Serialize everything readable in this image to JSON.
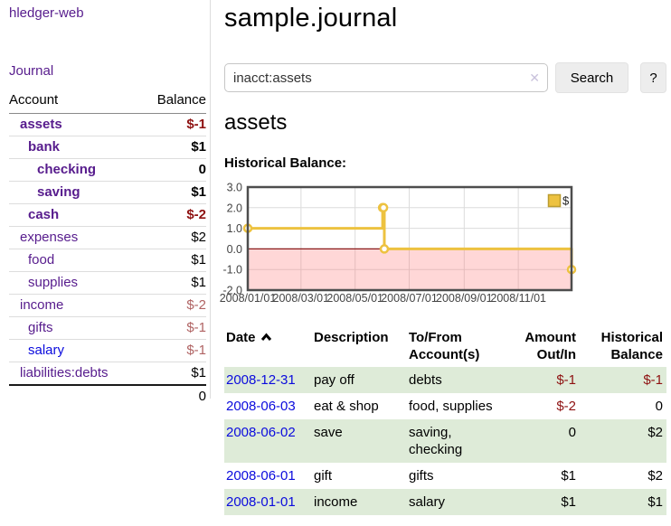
{
  "app": {
    "brand": "hledger-web"
  },
  "sidebar": {
    "journal_link": "Journal",
    "header": {
      "account": "Account",
      "balance": "Balance"
    },
    "accounts": [
      {
        "name": "assets",
        "balance": "$-1"
      },
      {
        "name": "bank",
        "balance": "$1"
      },
      {
        "name": "checking",
        "balance": "0"
      },
      {
        "name": "saving",
        "balance": "$1"
      },
      {
        "name": "cash",
        "balance": "$-2"
      },
      {
        "name": "expenses",
        "balance": "$2"
      },
      {
        "name": "food",
        "balance": "$1"
      },
      {
        "name": "supplies",
        "balance": "$1"
      },
      {
        "name": "income",
        "balance": "$-2"
      },
      {
        "name": "gifts",
        "balance": "$-1"
      },
      {
        "name": "salary",
        "balance": "$-1"
      },
      {
        "name": "liabilities:debts",
        "balance": "$1"
      }
    ],
    "total": "0"
  },
  "main": {
    "title": "sample.journal",
    "search": {
      "query": "inacct:assets",
      "clear_icon": "✕",
      "search_button": "Search",
      "help_button": "?"
    },
    "account_heading": "assets",
    "chart_label": "Historical Balance:"
  },
  "chart_data": {
    "type": "line",
    "title": "Historical Balance",
    "step": true,
    "series": [
      {
        "name": "$",
        "color": "#edc240",
        "points": [
          {
            "x": "2008-01-01",
            "y": 1.0
          },
          {
            "x": "2008-06-01",
            "y": 2.0
          },
          {
            "x": "2008-06-02",
            "y": 2.0
          },
          {
            "x": "2008-06-03",
            "y": 0.0
          },
          {
            "x": "2008-12-31",
            "y": -1.0
          }
        ]
      }
    ],
    "xlim": [
      "2008-01-01",
      "2008-12-31"
    ],
    "ylim": [
      -2.0,
      3.0
    ],
    "x_ticks": [
      "2008/01/01",
      "2008/03/01",
      "2008/05/01",
      "2008/07/01",
      "2008/09/01",
      "2008/11/01"
    ],
    "y_ticks": [
      "3.0",
      "2.0",
      "1.0",
      "0.0",
      "-1.0",
      "-2.0"
    ],
    "legend": {
      "label": "$",
      "position": "top-right"
    },
    "grid": true,
    "negative_region_fill": "#ff7070",
    "zero_line_color": "#8b1a1a"
  },
  "register": {
    "columns": {
      "date": "Date",
      "description": "Description",
      "accounts": "To/From Account(s)",
      "amount": "Amount Out/In",
      "balance": "Historical Balance"
    },
    "rows": [
      {
        "date": "2008-12-31",
        "description": "pay off",
        "accounts": "debts",
        "amount": "$-1",
        "balance": "$-1"
      },
      {
        "date": "2008-06-03",
        "description": "eat & shop",
        "accounts": "food, supplies",
        "amount": "$-2",
        "balance": "0"
      },
      {
        "date": "2008-06-02",
        "description": "save",
        "accounts": "saving, checking",
        "amount": "0",
        "balance": "$2"
      },
      {
        "date": "2008-06-01",
        "description": "gift",
        "accounts": "gifts",
        "amount": "$1",
        "balance": "$2"
      },
      {
        "date": "2008-01-01",
        "description": "income",
        "accounts": "salary",
        "amount": "$1",
        "balance": "$1"
      }
    ]
  }
}
